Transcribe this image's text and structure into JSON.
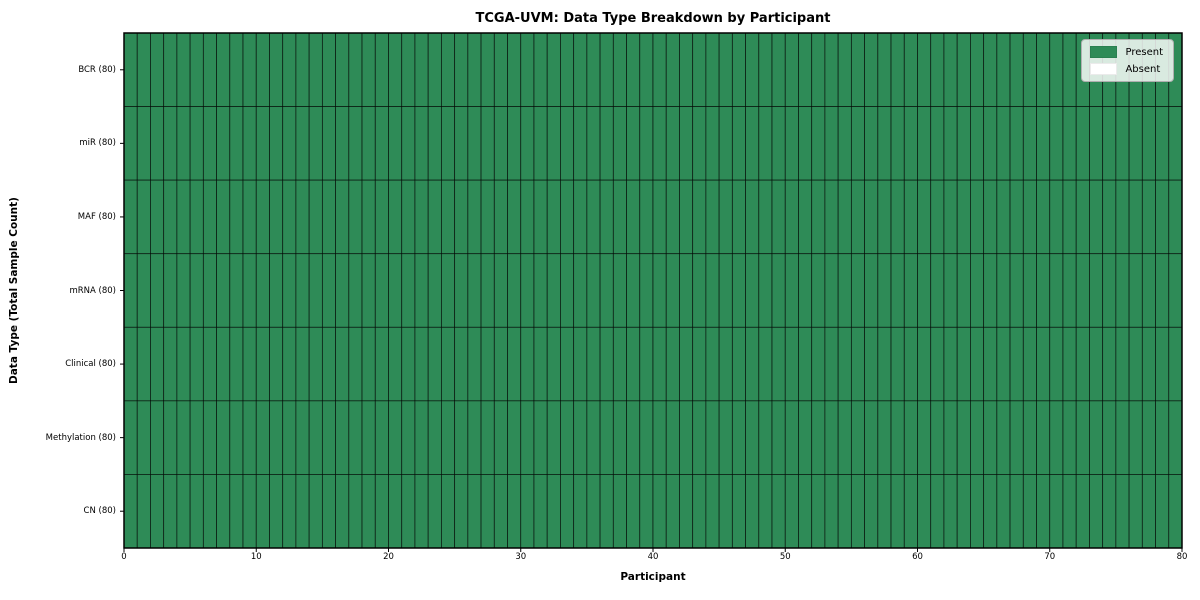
{
  "chart_data": {
    "type": "heatmap",
    "title": "TCGA-UVM: Data Type Breakdown by Participant",
    "xlabel": "Participant",
    "ylabel": "Data Type (Total Sample Count)",
    "x_range": [
      0,
      80
    ],
    "x_ticks": [
      0,
      10,
      20,
      30,
      40,
      50,
      60,
      70,
      80
    ],
    "n_participants": 80,
    "rows": [
      {
        "label": "BCR (80)",
        "present_count": 80,
        "absent_count": 0
      },
      {
        "label": "miR (80)",
        "present_count": 80,
        "absent_count": 0
      },
      {
        "label": "MAF (80)",
        "present_count": 80,
        "absent_count": 0
      },
      {
        "label": "mRNA (80)",
        "present_count": 80,
        "absent_count": 0
      },
      {
        "label": "Clinical (80)",
        "present_count": 80,
        "absent_count": 0
      },
      {
        "label": "Methylation (80)",
        "present_count": 80,
        "absent_count": 0
      },
      {
        "label": "CN (80)",
        "present_count": 80,
        "absent_count": 0
      }
    ],
    "legend": [
      {
        "label": "Present",
        "color": "#2e8b57"
      },
      {
        "label": "Absent",
        "color": "#ffffff"
      }
    ],
    "colors": {
      "present": "#2e8b57",
      "absent": "#ffffff",
      "cell_border": "#000000",
      "axis": "#000000"
    },
    "grid": true,
    "legend_position": "upper right"
  }
}
